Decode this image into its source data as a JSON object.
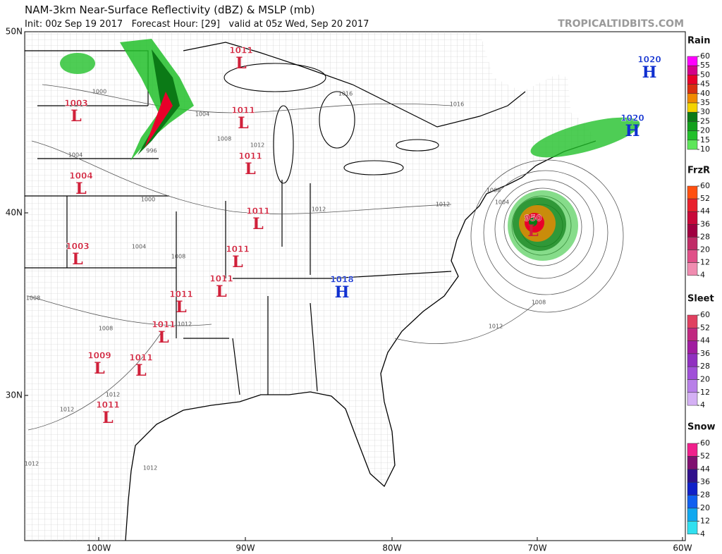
{
  "header": {
    "title": "NAM-3km Near-Surface Reflectivity (dBZ) & MSLP (mb)",
    "subtitle": "Init: 00z Sep 19 2017   Forecast Hour: [29]   valid at 05z Wed, Sep 20 2017",
    "watermark": "TROPICALTIDBITS.COM"
  },
  "axes": {
    "lat_labels": [
      "50N",
      "40N",
      "30N"
    ],
    "lon_labels": [
      "100W",
      "90W",
      "80W",
      "70W",
      "60W"
    ]
  },
  "pressure_centers": [
    {
      "value": 1011,
      "type": "L",
      "color": "#d0203a"
    },
    {
      "value": 1003,
      "type": "L",
      "color": "#d0203a"
    },
    {
      "value": 1011,
      "type": "L",
      "color": "#d0203a"
    },
    {
      "value": 1004,
      "type": "L",
      "color": "#d0203a"
    },
    {
      "value": 1011,
      "type": "L",
      "color": "#d0203a"
    },
    {
      "value": 1011,
      "type": "L",
      "color": "#d0203a"
    },
    {
      "value": 1003,
      "type": "L",
      "color": "#d0203a"
    },
    {
      "value": 1011,
      "type": "L",
      "color": "#d0203a"
    },
    {
      "value": 1011,
      "type": "L",
      "color": "#d0203a"
    },
    {
      "value": 1011,
      "type": "L",
      "color": "#d0203a"
    },
    {
      "value": 1011,
      "type": "L",
      "color": "#d0203a"
    },
    {
      "value": 1009,
      "type": "L",
      "color": "#d0203a"
    },
    {
      "value": 1011,
      "type": "L",
      "color": "#d0203a"
    },
    {
      "value": 1011,
      "type": "L",
      "color": "#d0203a"
    },
    {
      "value": 1018,
      "type": "H",
      "color": "#1030d0"
    },
    {
      "value": 1020,
      "type": "H",
      "color": "#1030d0"
    },
    {
      "value": 1020,
      "type": "H",
      "color": "#1030d0"
    },
    {
      "value": 950,
      "type": "L",
      "color": "#d0203a"
    }
  ],
  "isobar_labels": [
    1000,
    1004,
    1008,
    1012,
    996,
    1004,
    1000,
    1004,
    1008,
    1008,
    1008,
    1012,
    1012,
    1012,
    1012,
    1012,
    1016,
    1016,
    1012,
    1012,
    1008,
    1004,
    1008,
    1012
  ],
  "legend": [
    {
      "title": "Rain",
      "ticks": [
        60,
        55,
        50,
        45,
        40,
        35,
        30,
        25,
        20,
        15,
        10
      ],
      "colors": [
        "#ff00ff",
        "#d4008a",
        "#e8002a",
        "#d83010",
        "#f08a00",
        "#f4d400",
        "#0b7a16",
        "#12a01c",
        "#22c02a",
        "#5ee65a"
      ]
    },
    {
      "title": "FrzR",
      "ticks": [
        60,
        52,
        44,
        36,
        28,
        20,
        12,
        4
      ],
      "colors": [
        "#ff5010",
        "#e8202c",
        "#c80838",
        "#a00040",
        "#c02c66",
        "#e05088",
        "#f08cb0"
      ]
    },
    {
      "title": "Sleet",
      "ticks": [
        60,
        52,
        44,
        36,
        28,
        20,
        12,
        4
      ],
      "colors": [
        "#e04060",
        "#c02880",
        "#a01ca0",
        "#9030c0",
        "#a050d8",
        "#b880e8",
        "#d4b0f4"
      ]
    },
    {
      "title": "Snow",
      "ticks": [
        60,
        52,
        44,
        36,
        28,
        20,
        12,
        4
      ],
      "colors": [
        "#f0208c",
        "#801070",
        "#30108c",
        "#1020c8",
        "#1060f0",
        "#10a8f0",
        "#30e0f0"
      ]
    }
  ]
}
